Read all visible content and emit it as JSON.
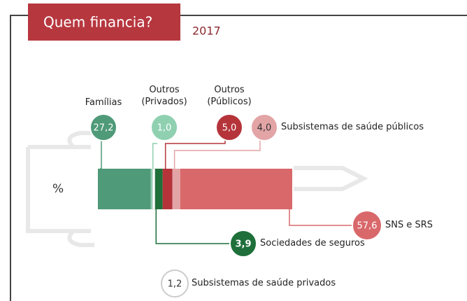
{
  "chart_data": {
    "type": "bar",
    "stacked": true,
    "orientation": "horizontal",
    "title": "Quem financia?",
    "subtitle": "2017",
    "categories": [
      "%"
    ],
    "series": [
      {
        "name": "Famílias",
        "color": "#4f9a78",
        "values": [
          27.2
        ],
        "value_labels": [
          "27,2"
        ]
      },
      {
        "name": "Outros (Privados)",
        "color": "#8fd0b0",
        "values": [
          1.0
        ],
        "value_labels": [
          "1,0"
        ]
      },
      {
        "name": "Subsistemas de saúde privados",
        "color": "#ffffff",
        "values": [
          1.2
        ],
        "value_labels": [
          "1,2"
        ]
      },
      {
        "name": "Sociedades de seguros",
        "color": "#1f6f3a",
        "values": [
          3.9
        ],
        "value_labels": [
          "3,9"
        ]
      },
      {
        "name": "Outros (Públicos)",
        "color": "#b5343a",
        "values": [
          5.0
        ],
        "value_labels": [
          "5,0"
        ]
      },
      {
        "name": "Subsistemas de saúde públicos",
        "color": "#e3a4a6",
        "values": [
          4.0
        ],
        "value_labels": [
          "4,0"
        ]
      },
      {
        "name": "SNS e SRS",
        "color": "#d9686b",
        "values": [
          57.6
        ],
        "value_labels": [
          "57,6"
        ]
      }
    ]
  }
}
